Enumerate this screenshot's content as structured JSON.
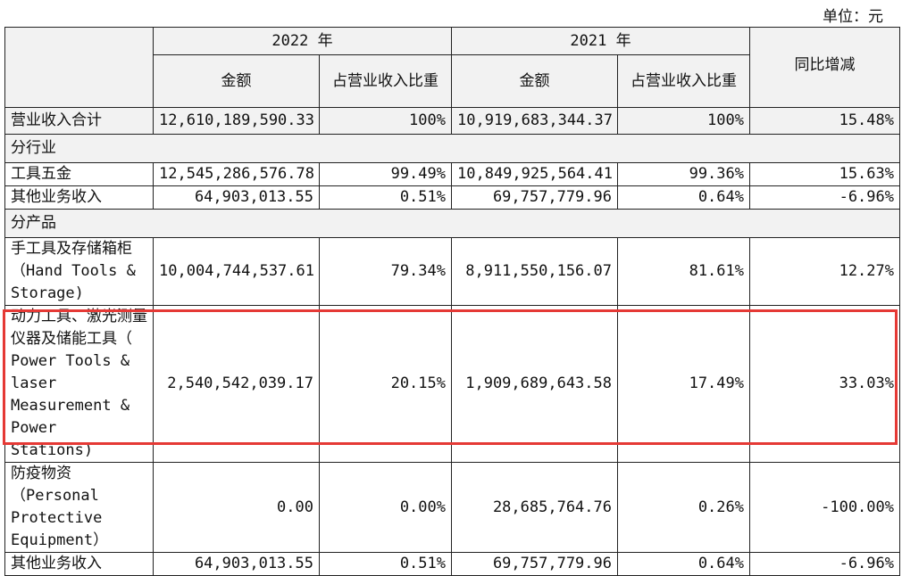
{
  "unit_label": "单位：元",
  "header": {
    "year_2022": "2022 年",
    "year_2021": "2021 年",
    "amount": "金额",
    "share": "占营业收入比重",
    "yoy": "同比增减"
  },
  "rows": {
    "total": {
      "label": "营业收入合计",
      "a2022": "12,610,189,590.33",
      "s2022": "100%",
      "a2021": "10,919,683,344.37",
      "s2021": "100%",
      "yoy": "15.48%"
    },
    "section_industry": "分行业",
    "hardware": {
      "label": "工具五金",
      "a2022": "12,545,286,576.78",
      "s2022": "99.49%",
      "a2021": "10,849,925,564.41",
      "s2021": "99.36%",
      "yoy": "15.63%"
    },
    "other1": {
      "label": "其他业务收入",
      "a2022": "64,903,013.55",
      "s2022": "0.51%",
      "a2021": "69,757,779.96",
      "s2021": "0.64%",
      "yoy": "-6.96%"
    },
    "section_product": "分产品",
    "hand_tools": {
      "label": "手工具及存储箱柜（Hand Tools & Storage)",
      "a2022": "10,004,744,537.61",
      "s2022": "79.34%",
      "a2021": "8,911,550,156.07",
      "s2021": "81.61%",
      "yoy": "12.27%"
    },
    "power_tools": {
      "label": "动力工具、激光测量仪器及储能工具（ Power Tools & laser Measurement & Power Stations)",
      "a2022": "2,540,542,039.17",
      "s2022": "20.15%",
      "a2021": "1,909,689,643.58",
      "s2021": "17.49%",
      "yoy": "33.03%"
    },
    "ppe": {
      "label": "防疫物资（Personal Protective Equipment）",
      "a2022": "0.00",
      "s2022": "0.00%",
      "a2021": "28,685,764.76",
      "s2021": "0.26%",
      "yoy": "-100.00%"
    },
    "other2": {
      "label": "其他业务收入",
      "a2022": "64,903,013.55",
      "s2022": "0.51%",
      "a2021": "69,757,779.96",
      "s2021": "0.64%",
      "yoy": "-6.96%"
    }
  },
  "accent_color": "#e53935"
}
